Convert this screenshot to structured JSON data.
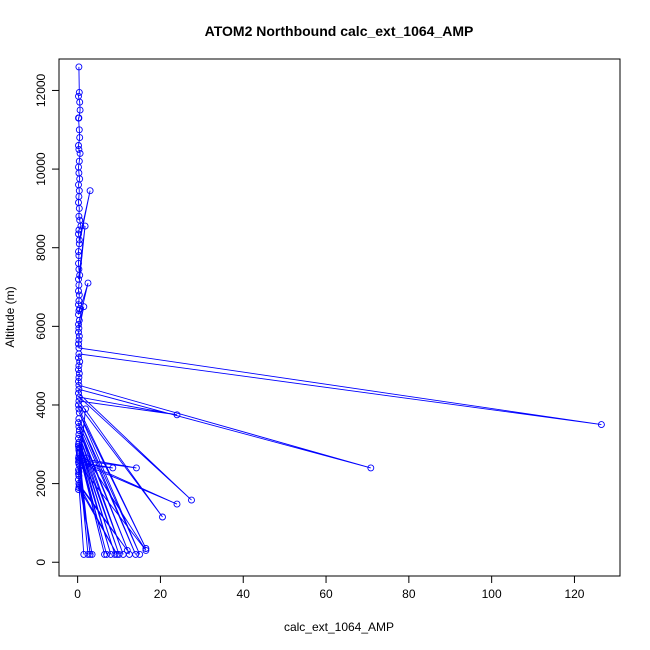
{
  "chart_data": {
    "type": "line",
    "title": "ATOM2 Northbound calc_ext_1064_AMP",
    "xlabel": "calc_ext_1064_AMP",
    "ylabel": "Altitude (m)",
    "xlim": [
      -4.5,
      131
    ],
    "ylim": [
      -350,
      12800
    ],
    "xticks": [
      0,
      20,
      40,
      60,
      80,
      100,
      120
    ],
    "yticks": [
      0,
      2000,
      4000,
      6000,
      8000,
      10000,
      12000
    ],
    "grid": false,
    "marker": "open-circle",
    "color": "#0000ff",
    "series": [
      {
        "x": [
          0.3,
          0.4,
          0.2,
          0.5,
          0.6,
          0.3,
          0.2,
          0.4,
          0.5,
          0.2,
          0.3,
          0.6,
          0.4,
          0.2,
          0.3,
          0.5,
          0.2,
          0.4,
          0.3,
          0.2,
          0.4,
          0.3,
          0.5,
          0.8,
          0.3,
          0.2,
          0.4,
          3.0,
          0.4,
          0.2,
          0.3,
          0.2,
          0.3,
          0.5,
          0.2,
          1.8,
          0.3,
          0.2,
          0.4,
          0.3,
          0.2,
          0.5,
          0.3,
          0.2,
          2.5,
          0.4,
          0.2,
          0.3,
          1.5,
          0.2,
          0.4,
          0.3,
          0.2,
          0.3,
          126.5,
          0.3,
          0.2,
          0.5,
          0.3,
          0.2,
          0.4,
          0.3,
          0.2,
          0.3,
          70.8,
          0.3,
          0.2,
          27.5,
          0.4,
          24.0,
          0.3,
          20.5,
          0.2,
          0.3,
          16.5,
          0.4,
          15.0,
          0.3,
          14.0,
          0.2,
          0.3,
          12.5,
          0.4,
          11.0,
          0.3,
          10.0,
          0.2,
          9.0,
          0.3,
          8.0,
          0.2,
          7.0,
          0.3,
          6.5,
          0.4,
          3.0,
          0.3,
          2.5,
          0.2,
          14.2,
          0.3,
          24.0,
          0.2,
          8.5,
          0.3,
          16.5,
          2.2,
          0.6,
          1.9,
          0.3,
          3.5,
          0.2,
          1.5,
          0.3,
          12.0,
          0.4,
          9.5,
          0.3,
          0.2,
          0.5,
          0.3,
          0.2,
          0.4,
          0.3,
          0.2,
          0.6,
          0.2
        ],
        "y": [
          12600,
          11950,
          11850,
          11700,
          11500,
          11300,
          11300,
          11000,
          10800,
          10600,
          10500,
          10400,
          10200,
          10050,
          9900,
          9750,
          9600,
          9450,
          9300,
          9150,
          9000,
          8800,
          8700,
          8550,
          8450,
          8350,
          8200,
          9450,
          8100,
          7900,
          7800,
          7600,
          7450,
          7300,
          7200,
          8550,
          7050,
          6900,
          6800,
          6650,
          6550,
          6450,
          6400,
          6300,
          7100,
          6150,
          6050,
          5950,
          6500,
          5850,
          5750,
          5650,
          5550,
          5450,
          3500,
          5300,
          5200,
          5100,
          5000,
          4900,
          4800,
          4700,
          4600,
          4500,
          2400,
          4400,
          4300,
          1580,
          4200,
          3750,
          4100,
          1150,
          4000,
          3900,
          350,
          3800,
          200,
          3650,
          200,
          3550,
          3450,
          200,
          3350,
          200,
          3250,
          200,
          3150,
          200,
          3050,
          200,
          2950,
          200,
          2850,
          200,
          2750,
          200,
          2700,
          200,
          2650,
          2400,
          2600,
          1480,
          2550,
          2400,
          2500,
          300,
          2650,
          2650,
          3900,
          2200,
          200,
          2100,
          200,
          2000,
          300,
          1950,
          200,
          1900,
          2350,
          2450,
          2300,
          2250,
          2800,
          2900,
          3000,
          2900,
          1850
        ]
      }
    ]
  }
}
